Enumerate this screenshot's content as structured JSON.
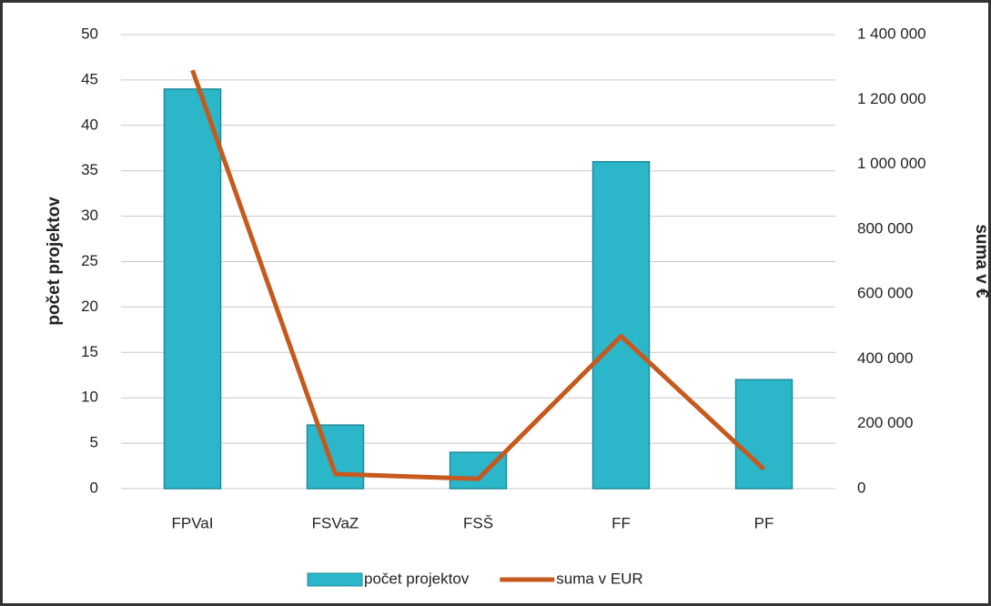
{
  "chart_data": {
    "type": "bar_line",
    "categories": [
      "FPVaI",
      "FSVaZ",
      "FSŠ",
      "FF",
      "PF"
    ],
    "series": [
      {
        "name": "počet projektov",
        "color": "#2bb6c9",
        "type": "bar",
        "values": [
          44,
          7,
          4,
          36,
          12
        ]
      },
      {
        "name": "suma v EUR",
        "color": "#c65a1e",
        "type": "line",
        "axis": "y2",
        "values": [
          1290000,
          45000,
          30000,
          470000,
          60000
        ]
      }
    ],
    "ylabel": "počet projektov",
    "y2label": "suma v €",
    "ylim": [
      0,
      50
    ],
    "yticks": [
      0,
      5,
      10,
      15,
      20,
      25,
      30,
      35,
      40,
      45,
      50
    ],
    "y2lim": [
      0,
      1400000
    ],
    "y2ticks": [
      0,
      {
        "value": 200000,
        "label": "200 000"
      },
      {
        "value": 400000,
        "label": "400 000"
      },
      {
        "value": 600000,
        "label": "600 000"
      },
      {
        "value": 800000,
        "label": "800 000"
      },
      {
        "value": 1000000,
        "label": "1 000 000"
      },
      {
        "value": 1200000,
        "label": "1 200 000"
      },
      {
        "value": 1400000,
        "label": "1 400 000"
      }
    ],
    "grid": true,
    "legend": "bottom"
  }
}
